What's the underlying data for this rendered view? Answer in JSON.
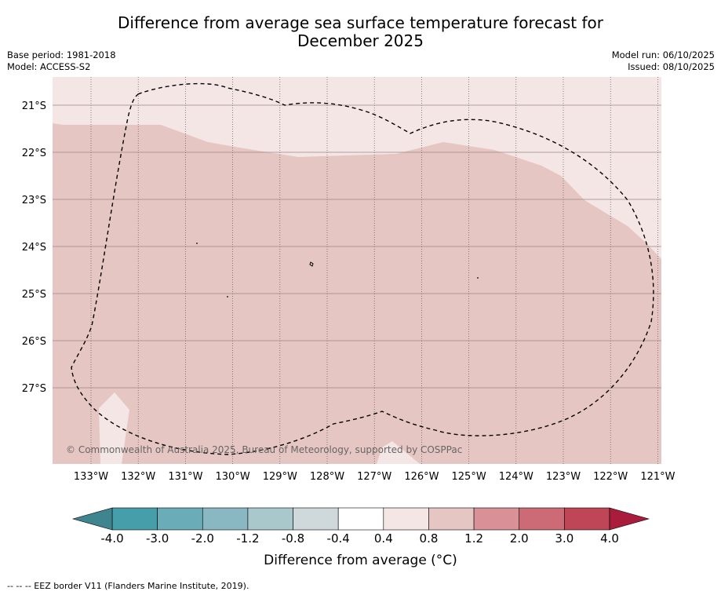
{
  "title_line1": "Difference from average sea surface temperature forecast for",
  "title_line2": "December 2025",
  "base_period": "Base period: 1981-2018",
  "model": "Model: ACCESS-S2",
  "model_run": "Model run: 06/10/2025",
  "issued": "Issued: 08/10/2025",
  "copyright": "© Commonwealth of Australia 2025, Bureau of Meteorology, supported by COSPPac",
  "footer_note": "--  --  -- EEZ border V11 (Flanders Marine Institute, 2019).",
  "colors": {
    "anomaly_04_08": "#f4e6e5",
    "anomaly_08_12": "#e6c6c2",
    "grid": "#555555",
    "eez_border": "#000000"
  },
  "map": {
    "lat_labels": [
      "21°S",
      "22°S",
      "23°S",
      "24°S",
      "25°S",
      "26°S",
      "27°S"
    ],
    "lon_labels": [
      "133°W",
      "132°W",
      "131°W",
      "130°W",
      "129°W",
      "128°W",
      "127°W",
      "126°W",
      "125°W",
      "124°W",
      "123°W",
      "122°W",
      "121°W"
    ]
  },
  "colorbar": {
    "title": "Difference from average (°C)",
    "labels": [
      "-4.0",
      "-3.0",
      "-2.0",
      "-1.2",
      "-0.8",
      "-0.4",
      "0.4",
      "0.8",
      "1.2",
      "2.0",
      "3.0",
      "4.0"
    ],
    "colors": [
      "#3f8590",
      "#479eab",
      "#6aadb9",
      "#8ab8c2",
      "#a8c8cc",
      "#cfd9dc",
      "#ffffff",
      "#f4e6e5",
      "#e6c6c2",
      "#d99096",
      "#cc6b75",
      "#bf4657",
      "#aa1c3b"
    ]
  }
}
